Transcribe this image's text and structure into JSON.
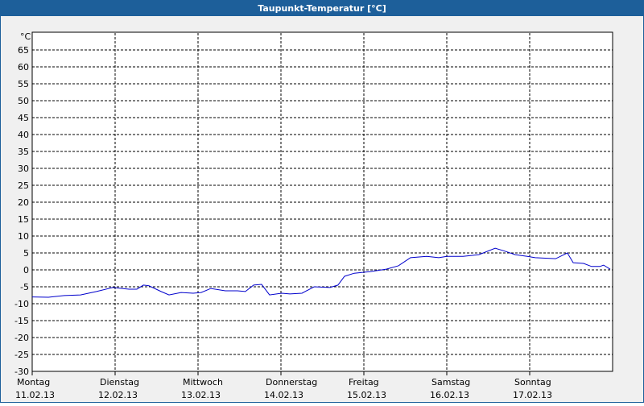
{
  "chart_data": {
    "type": "line",
    "title": "Taupunkt-Temperatur [°C]",
    "y_unit": "°C",
    "xlim": [
      0,
      168
    ],
    "xticks": [
      {
        "value": 0,
        "label": "Montag",
        "date": "11.02.13"
      },
      {
        "value": 24,
        "label": "Dienstag",
        "date": "12.02.13"
      },
      {
        "value": 48,
        "label": "Mittwoch",
        "date": "13.02.13"
      },
      {
        "value": 72,
        "label": "Donnerstag",
        "date": "14.02.13"
      },
      {
        "value": 96,
        "label": "Freitag",
        "date": "15.02.13"
      },
      {
        "value": 120,
        "label": "Samstag",
        "date": "16.02.13"
      },
      {
        "value": 144,
        "label": "Sonntag",
        "date": "17.02.13"
      }
    ],
    "ylim": [
      -30,
      70
    ],
    "yticks": [
      -30,
      -25,
      -20,
      -15,
      -10,
      -5,
      0,
      5,
      10,
      15,
      20,
      25,
      30,
      35,
      40,
      45,
      50,
      55,
      60,
      65
    ],
    "grid": true,
    "series": [
      {
        "color": "#0000cc",
        "x": [
          0,
          4.7,
          9.3,
          14,
          18.6,
          23.3,
          28,
          30.3,
          32.2,
          33.8,
          37.3,
          39.6,
          43.1,
          46.6,
          48.9,
          51.7,
          55.9,
          59.4,
          61.7,
          64.1,
          66.4,
          68.7,
          72.2,
          74.6,
          78.1,
          81.6,
          86.2,
          88.5,
          90.4,
          93.2,
          97.9,
          102.5,
          106,
          109.5,
          114.2,
          117.7,
          120,
          124.7,
          129.3,
          134,
          136.3,
          139.8,
          143.3,
          145.6,
          151.5,
          154.9,
          156.6,
          159.6,
          161.9,
          164.3,
          165.4,
          167.3
        ],
        "values": [
          -8,
          -8.1,
          -7.6,
          -7.4,
          -6.4,
          -5.2,
          -5.7,
          -5.7,
          -4.5,
          -4.7,
          -6.4,
          -7.4,
          -6.7,
          -6.9,
          -6.7,
          -5.5,
          -6.2,
          -6.2,
          -6.4,
          -4.5,
          -4.3,
          -7.4,
          -6.9,
          -7.1,
          -6.9,
          -5,
          -5.2,
          -4.5,
          -1.9,
          -1,
          -0.5,
          0.2,
          1.2,
          3.6,
          4,
          3.6,
          4,
          4,
          4.5,
          6.4,
          5.7,
          4.5,
          4,
          3.6,
          3.3,
          5,
          2.1,
          1.9,
          1,
          1,
          1.4,
          0.2
        ]
      }
    ]
  }
}
